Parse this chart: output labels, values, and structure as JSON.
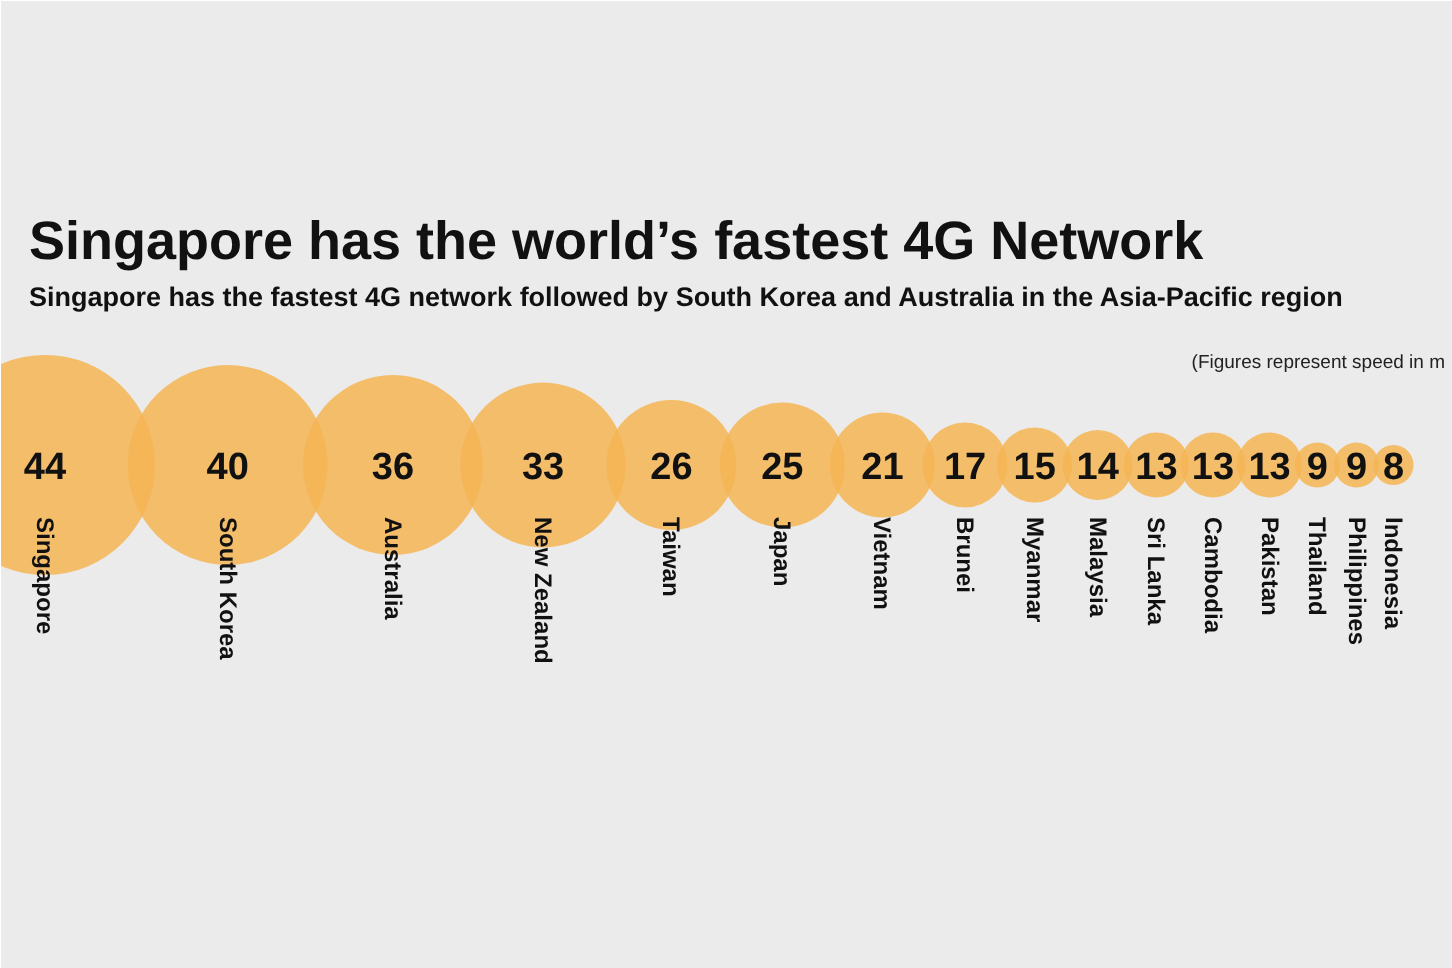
{
  "chart_data": {
    "type": "other",
    "title": "Singapore has the world’s fastest 4G Network",
    "subtitle": "Singapore has the fastest 4G network followed by South Korea and Australia in the Asia-Pacific region",
    "annotations": [
      "(Figures represent speed in m"
    ],
    "categories": [
      "Singapore",
      "South Korea",
      "Australia",
      "New Zealand",
      "Taiwan",
      "Japan",
      "Vietnam",
      "Brunei",
      "Myanmar",
      "Malaysia",
      "Sri Lanka",
      "Cambodia",
      "Pakistan",
      "Thailand",
      "Philippines",
      "Indonesia"
    ],
    "values": [
      44,
      40,
      36,
      33,
      26,
      25,
      21,
      17,
      15,
      14,
      13,
      13,
      13,
      9,
      9,
      8
    ],
    "color": "#f5b553",
    "data_labels": true
  }
}
